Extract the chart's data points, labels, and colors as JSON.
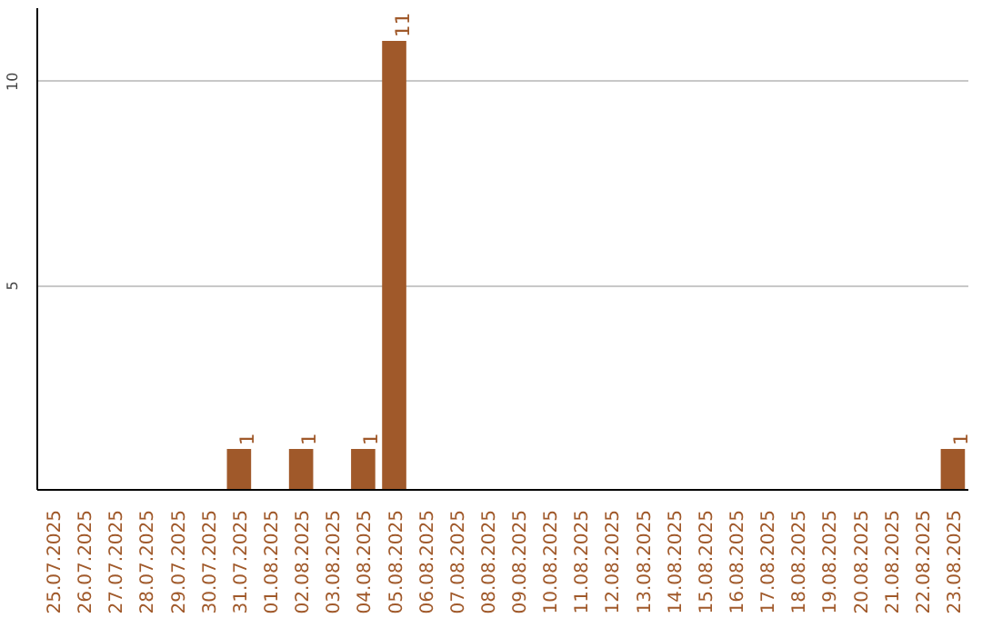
{
  "chart_data": {
    "type": "bar",
    "categories": [
      "25.07.2025",
      "26.07.2025",
      "27.07.2025",
      "28.07.2025",
      "29.07.2025",
      "30.07.2025",
      "31.07.2025",
      "01.08.2025",
      "02.08.2025",
      "03.08.2025",
      "04.08.2025",
      "05.08.2025",
      "06.08.2025",
      "07.08.2025",
      "08.08.2025",
      "09.08.2025",
      "10.08.2025",
      "11.08.2025",
      "12.08.2025",
      "13.08.2025",
      "14.08.2025",
      "15.08.2025",
      "16.08.2025",
      "17.08.2025",
      "18.08.2025",
      "19.08.2025",
      "20.08.2025",
      "21.08.2025",
      "22.08.2025",
      "23.08.2025"
    ],
    "values": [
      0,
      0,
      0,
      0,
      0,
      0,
      1,
      0,
      1,
      0,
      1,
      11,
      0,
      0,
      0,
      0,
      0,
      0,
      0,
      0,
      0,
      0,
      0,
      0,
      0,
      0,
      0,
      0,
      0,
      1
    ],
    "value_labels": [
      null,
      null,
      null,
      null,
      null,
      null,
      "1",
      null,
      "1",
      null,
      "1",
      "11",
      null,
      null,
      null,
      null,
      null,
      null,
      null,
      null,
      null,
      null,
      null,
      null,
      null,
      null,
      null,
      null,
      null,
      "1"
    ],
    "color": "#a0592a",
    "ylim": [
      0,
      11.8
    ],
    "yticks": [
      5,
      10
    ],
    "grid": "y"
  }
}
